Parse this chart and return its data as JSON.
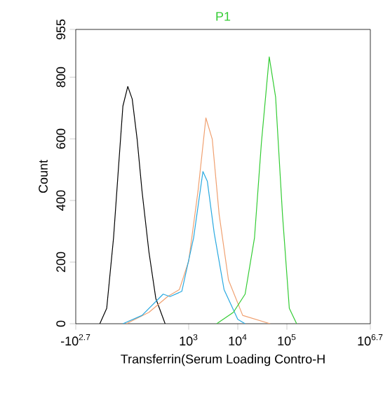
{
  "chart_data": {
    "type": "line",
    "title": "P1",
    "xlabel": "Transferrin(Serum Loading Contro-H",
    "ylabel": "Count",
    "log": "x",
    "xlim": [
      5.01,
      5010000
    ],
    "ylim": [
      0,
      955
    ],
    "xticks": [
      {
        "value": 5.01,
        "label": "-10$^{2.7}$"
      },
      {
        "value": 1000,
        "label": "10$^{3}$"
      },
      {
        "value": 10000,
        "label": "10$^{4}$"
      },
      {
        "value": 100000,
        "label": "10$^{5}$"
      },
      {
        "value": 5010000,
        "label": "10$^{6.7}$"
      }
    ],
    "yticks": [
      0,
      200,
      400,
      600,
      800,
      955
    ],
    "grid": false,
    "marker": "none",
    "line_style": "solid",
    "series": [
      {
        "color": "#000000",
        "x": [
          15.5,
          21.4,
          29.5,
          37.2,
          45.7,
          57.5,
          70.8,
          89.1,
          112,
          155,
          214,
          331
        ],
        "values": [
          0,
          50,
          279,
          507,
          706,
          770,
          729,
          599,
          431,
          233,
          82,
          0
        ]
      },
      {
        "color": "#f0a070",
        "x": [
          53.7,
          155,
          372,
          646,
          1000,
          1550,
          2240,
          3020,
          4170,
          6460,
          12600,
          45700
        ],
        "values": [
          0,
          37,
          88,
          111,
          203,
          431,
          668,
          599,
          355,
          142,
          27,
          0
        ]
      },
      {
        "color": "#29a9e0",
        "x": [
          45.7,
          112,
          302,
          417,
          724,
          1260,
          1950,
          2400,
          3310,
          5250,
          10000,
          14100
        ],
        "values": [
          0,
          27,
          96,
          88,
          105,
          279,
          494,
          462,
          294,
          111,
          14,
          0
        ]
      },
      {
        "color": "#33cc33",
        "x": [
          3720,
          8130,
          14100,
          21900,
          30200,
          43700,
          58900,
          81300,
          112000,
          158000
        ],
        "values": [
          0,
          37,
          96,
          279,
          585,
          866,
          736,
          355,
          50,
          0
        ]
      }
    ]
  }
}
